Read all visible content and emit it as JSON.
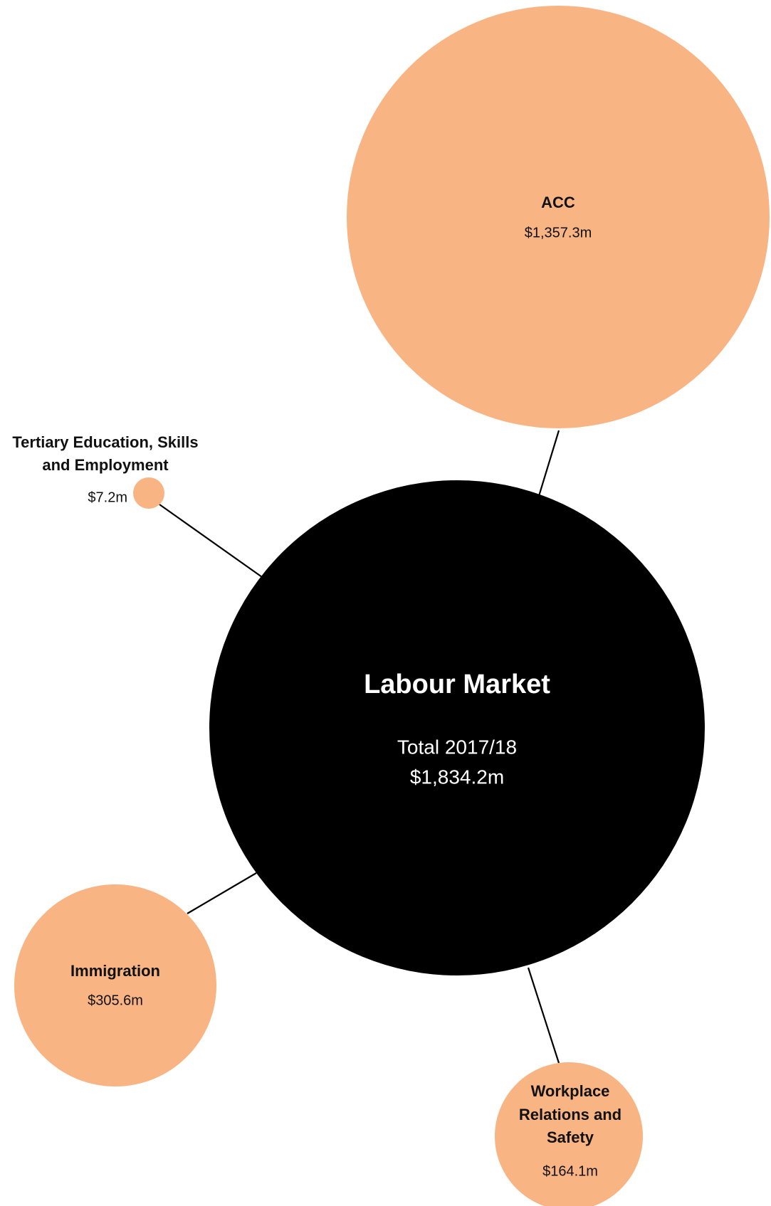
{
  "center": {
    "title": "Labour Market",
    "subtitle": "Total 2017/18",
    "value": "$1,834.2m"
  },
  "nodes": [
    {
      "label": [
        "ACC"
      ],
      "value": "$1,357.3m"
    },
    {
      "label": [
        "Tertiary Education, Skills",
        "and Employment"
      ],
      "value": "$7.2m"
    },
    {
      "label": [
        "Immigration"
      ],
      "value": "$305.6m"
    },
    {
      "label": [
        "Workplace",
        "Relations and",
        "Safety"
      ],
      "value": "$164.1m"
    }
  ]
}
